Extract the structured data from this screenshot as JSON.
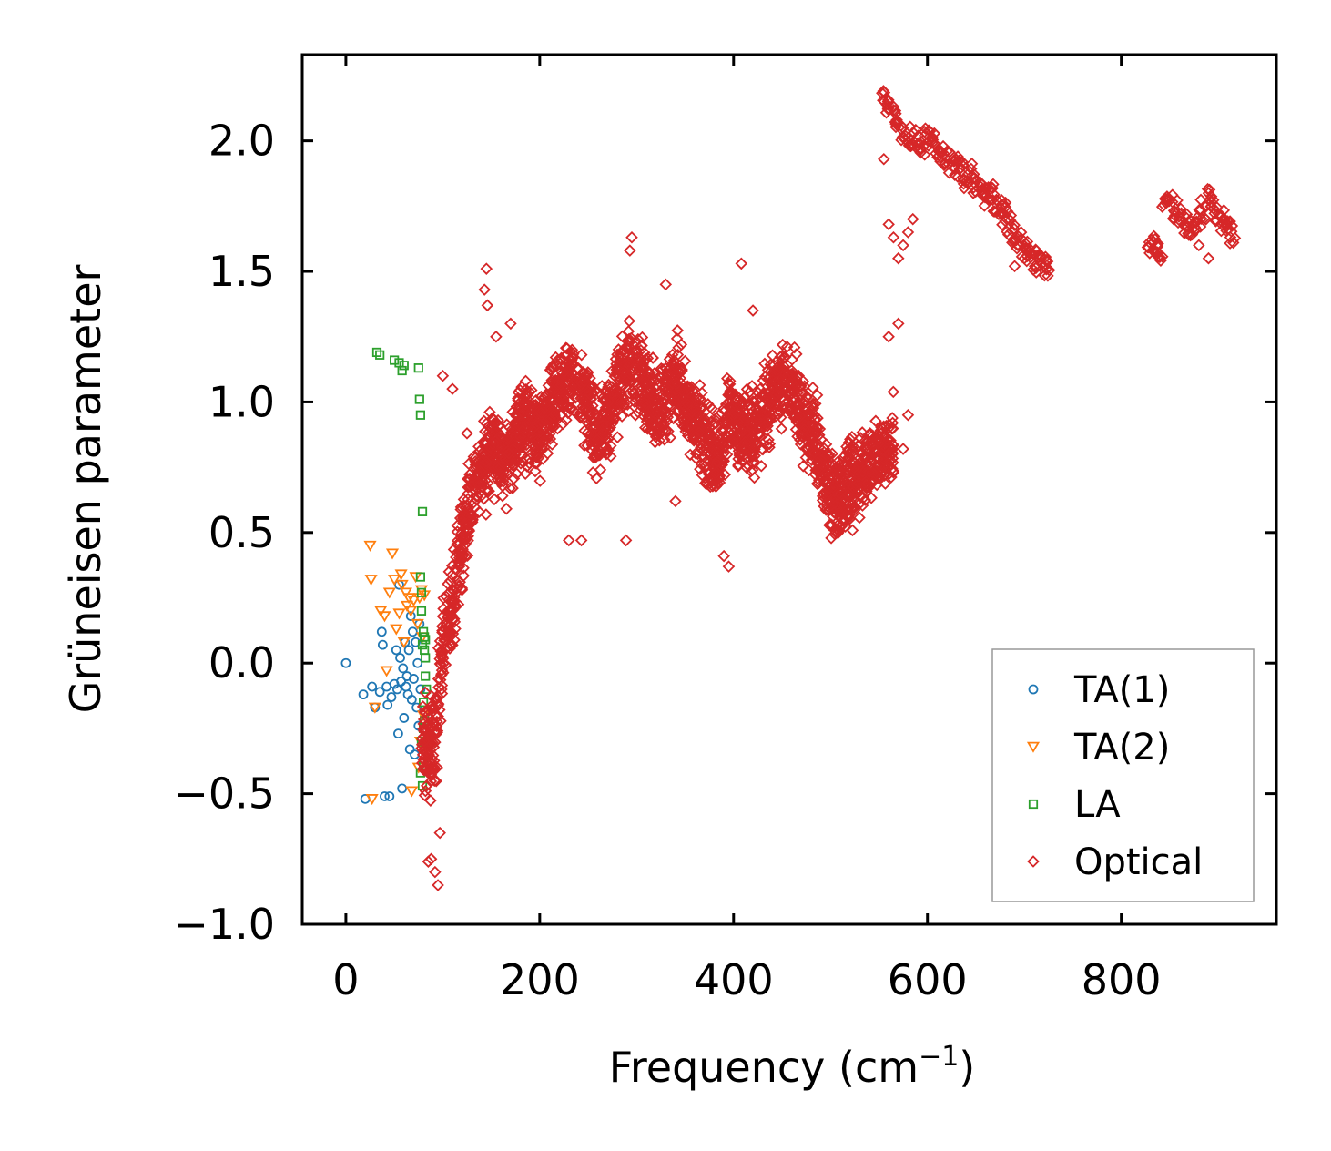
{
  "chart_data": {
    "type": "scatter",
    "title": "",
    "xlabel": "Frequency (cm",
    "xlabel_sup": "−1",
    "xlabel_close": ")",
    "ylabel": "Grüneisen parameter",
    "xlim": [
      -45,
      960
    ],
    "ylim": [
      -1.0,
      2.33
    ],
    "xticks": [
      0,
      200,
      400,
      600,
      800
    ],
    "xtick_labels": [
      "0",
      "200",
      "400",
      "600",
      "800"
    ],
    "yticks": [
      -1.0,
      -0.5,
      0.0,
      0.5,
      1.0,
      1.5,
      2.0
    ],
    "ytick_labels": [
      "−1.0",
      "−0.5",
      "0.0",
      "0.5",
      "1.0",
      "1.5",
      "2.0"
    ],
    "legend_position": "lower-right",
    "series": [
      {
        "name": "TA(1)",
        "marker": "circle",
        "color": "#1f77b4",
        "points": [
          [
            0,
            0.0
          ],
          [
            18,
            -0.12
          ],
          [
            20,
            -0.52
          ],
          [
            27,
            -0.09
          ],
          [
            30,
            -0.17
          ],
          [
            35,
            -0.11
          ],
          [
            37,
            0.12
          ],
          [
            38,
            0.07
          ],
          [
            40,
            -0.51
          ],
          [
            42,
            -0.09
          ],
          [
            43,
            -0.16
          ],
          [
            45,
            -0.51
          ],
          [
            47,
            -0.13
          ],
          [
            50,
            -0.08
          ],
          [
            52,
            0.05
          ],
          [
            53,
            -0.1
          ],
          [
            54,
            -0.27
          ],
          [
            55,
            0.3
          ],
          [
            56,
            0.02
          ],
          [
            57,
            -0.07
          ],
          [
            58,
            -0.48
          ],
          [
            59,
            -0.02
          ],
          [
            60,
            -0.21
          ],
          [
            61,
            0.08
          ],
          [
            62,
            -0.09
          ],
          [
            63,
            -0.05
          ],
          [
            64,
            -0.12
          ],
          [
            65,
            0.05
          ],
          [
            66,
            -0.33
          ],
          [
            67,
            0.18
          ],
          [
            68,
            -0.14
          ],
          [
            69,
            0.12
          ],
          [
            70,
            -0.06
          ],
          [
            71,
            -0.35
          ],
          [
            72,
            0.08
          ],
          [
            73,
            -0.17
          ],
          [
            74,
            0.0
          ],
          [
            75,
            -0.24
          ],
          [
            76,
            0.15
          ],
          [
            77,
            -0.1
          ]
        ]
      },
      {
        "name": "TA(2)",
        "marker": "triangle-down",
        "color": "#ff7f0e",
        "points": [
          [
            25,
            0.45
          ],
          [
            26,
            0.32
          ],
          [
            27,
            -0.52
          ],
          [
            30,
            -0.17
          ],
          [
            36,
            0.2
          ],
          [
            40,
            0.18
          ],
          [
            42,
            -0.03
          ],
          [
            45,
            0.27
          ],
          [
            48,
            0.42
          ],
          [
            50,
            0.32
          ],
          [
            52,
            0.13
          ],
          [
            55,
            0.19
          ],
          [
            57,
            0.34
          ],
          [
            58,
            0.3
          ],
          [
            60,
            0.08
          ],
          [
            62,
            0.27
          ],
          [
            63,
            0.22
          ],
          [
            65,
            0.25
          ],
          [
            67,
            0.2
          ],
          [
            68,
            -0.49
          ],
          [
            70,
            0.24
          ],
          [
            72,
            0.33
          ],
          [
            74,
            0.15
          ],
          [
            75,
            -0.4
          ],
          [
            76,
            0.25
          ],
          [
            77,
            -0.3
          ],
          [
            78,
            0.28
          ],
          [
            79,
            0.1
          ],
          [
            80,
            -0.2
          ],
          [
            81,
            0.26
          ]
        ]
      },
      {
        "name": "LA",
        "marker": "square",
        "color": "#2ca02c",
        "points": [
          [
            32,
            1.19
          ],
          [
            35,
            1.18
          ],
          [
            50,
            1.16
          ],
          [
            55,
            1.15
          ],
          [
            58,
            1.12
          ],
          [
            60,
            1.14
          ],
          [
            75,
            1.13
          ],
          [
            76,
            1.01
          ],
          [
            77,
            0.95
          ],
          [
            79,
            0.58
          ],
          [
            77,
            0.33
          ],
          [
            78,
            0.27
          ],
          [
            80,
            0.12
          ],
          [
            81,
            0.1
          ],
          [
            79,
            0.07
          ],
          [
            82,
            -0.05
          ],
          [
            80,
            -0.15
          ],
          [
            81,
            -0.22
          ],
          [
            78,
            -0.3
          ],
          [
            80,
            -0.38
          ],
          [
            77,
            -0.42
          ],
          [
            79,
            -0.47
          ],
          [
            82,
            0.02
          ],
          [
            83,
            -0.1
          ],
          [
            78,
            0.2
          ],
          [
            80,
            -0.25
          ],
          [
            81,
            0.05
          ],
          [
            82,
            0.09
          ]
        ]
      },
      {
        "name": "Optical",
        "marker": "diamond",
        "color": "#d62728",
        "anchors": [
          [
            78,
            -0.3
          ],
          [
            90,
            -0.35
          ],
          [
            100,
            0.05
          ],
          [
            115,
            0.35
          ],
          [
            130,
            0.65
          ],
          [
            150,
            0.8
          ],
          [
            165,
            0.78
          ],
          [
            180,
            0.92
          ],
          [
            200,
            0.88
          ],
          [
            215,
            1.0
          ],
          [
            230,
            1.1
          ],
          [
            245,
            1.05
          ],
          [
            260,
            0.85
          ],
          [
            275,
            0.98
          ],
          [
            290,
            1.15
          ],
          [
            305,
            1.1
          ],
          [
            320,
            0.95
          ],
          [
            340,
            1.1
          ],
          [
            355,
            0.95
          ],
          [
            370,
            0.85
          ],
          [
            385,
            0.78
          ],
          [
            395,
            0.95
          ],
          [
            405,
            0.92
          ],
          [
            420,
            0.88
          ],
          [
            440,
            1.02
          ],
          [
            455,
            1.08
          ],
          [
            470,
            0.95
          ],
          [
            485,
            0.85
          ],
          [
            500,
            0.62
          ],
          [
            510,
            0.65
          ],
          [
            530,
            0.72
          ],
          [
            550,
            0.8
          ],
          [
            565,
            0.85
          ]
        ],
        "outliers": [
          [
            95,
            -0.85
          ],
          [
            92,
            -0.8
          ],
          [
            88,
            -0.75
          ],
          [
            85,
            -0.76
          ],
          [
            97,
            -0.65
          ],
          [
            100,
            1.1
          ],
          [
            110,
            1.05
          ],
          [
            125,
            0.88
          ],
          [
            145,
            1.51
          ],
          [
            143,
            1.43
          ],
          [
            146,
            1.37
          ],
          [
            155,
            1.25
          ],
          [
            170,
            1.3
          ],
          [
            230,
            0.47
          ],
          [
            243,
            0.47
          ],
          [
            289,
            0.47
          ],
          [
            295,
            1.63
          ],
          [
            293,
            1.58
          ],
          [
            330,
            1.45
          ],
          [
            340,
            0.62
          ],
          [
            395,
            0.37
          ],
          [
            408,
            1.53
          ],
          [
            390,
            0.41
          ],
          [
            420,
            1.35
          ],
          [
            510,
            0.52
          ],
          [
            525,
            0.6
          ],
          [
            560,
            1.25
          ],
          [
            570,
            1.3
          ],
          [
            575,
            0.82
          ],
          [
            580,
            0.95
          ]
        ],
        "upper_band": [
          [
            555,
            2.17
          ],
          [
            560,
            2.12
          ],
          [
            565,
            2.1
          ],
          [
            570,
            2.06
          ],
          [
            575,
            2.04
          ],
          [
            580,
            2.02
          ],
          [
            585,
            2.02
          ],
          [
            590,
            2.0
          ],
          [
            595,
            1.99
          ],
          [
            600,
            2.02
          ],
          [
            605,
            2.0
          ],
          [
            610,
            1.98
          ],
          [
            615,
            1.95
          ],
          [
            620,
            1.93
          ],
          [
            625,
            1.9
          ],
          [
            630,
            1.9
          ],
          [
            635,
            1.88
          ],
          [
            640,
            1.85
          ],
          [
            645,
            1.87
          ],
          [
            650,
            1.84
          ],
          [
            655,
            1.8
          ],
          [
            660,
            1.78
          ],
          [
            665,
            1.8
          ],
          [
            670,
            1.77
          ],
          [
            675,
            1.75
          ],
          [
            680,
            1.72
          ],
          [
            685,
            1.68
          ],
          [
            690,
            1.64
          ],
          [
            695,
            1.62
          ],
          [
            700,
            1.59
          ],
          [
            705,
            1.57
          ],
          [
            710,
            1.55
          ],
          [
            715,
            1.54
          ],
          [
            720,
            1.52
          ],
          [
            725,
            1.52
          ],
          [
            830,
            1.61
          ],
          [
            835,
            1.59
          ],
          [
            840,
            1.58
          ],
          [
            845,
            1.77
          ],
          [
            850,
            1.76
          ],
          [
            855,
            1.73
          ],
          [
            860,
            1.7
          ],
          [
            865,
            1.68
          ],
          [
            870,
            1.66
          ],
          [
            875,
            1.68
          ],
          [
            880,
            1.7
          ],
          [
            885,
            1.74
          ],
          [
            890,
            1.79
          ],
          [
            895,
            1.75
          ],
          [
            900,
            1.71
          ],
          [
            905,
            1.69
          ],
          [
            910,
            1.66
          ],
          [
            915,
            1.65
          ]
        ],
        "upper_outliers": [
          [
            560,
            1.68
          ],
          [
            565,
            1.63
          ],
          [
            570,
            1.55
          ],
          [
            575,
            1.6
          ],
          [
            580,
            1.65
          ],
          [
            585,
            1.7
          ],
          [
            555,
            1.93
          ],
          [
            690,
            1.52
          ],
          [
            700,
            1.55
          ],
          [
            880,
            1.6
          ],
          [
            890,
            1.55
          ]
        ]
      }
    ]
  }
}
